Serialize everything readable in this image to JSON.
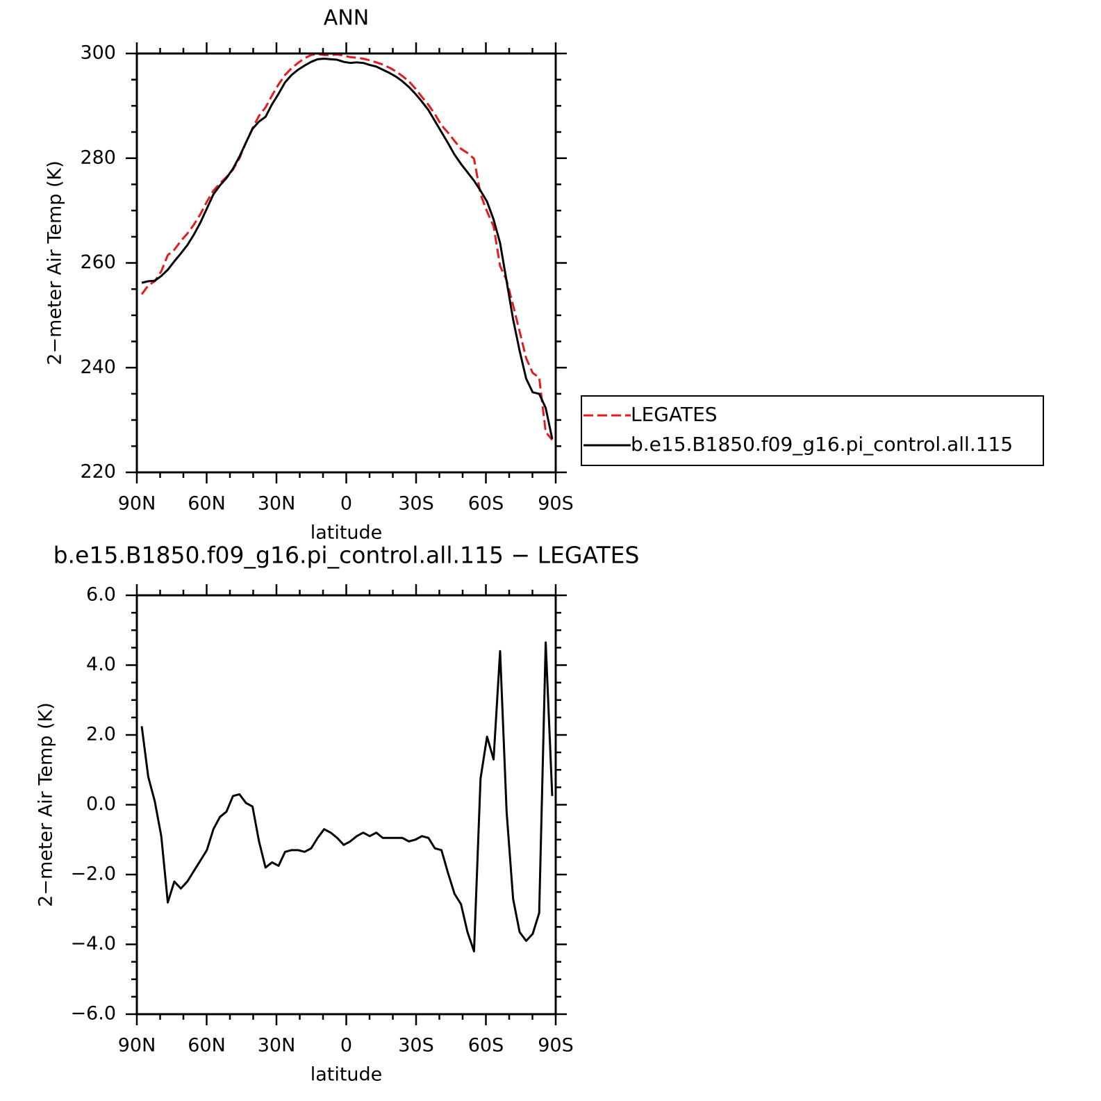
{
  "chart_data": [
    {
      "type": "line",
      "title": "ANN",
      "xlabel": "latitude",
      "ylabel": "2−meter Air Temp (K)",
      "x": [
        87.9,
        85.1,
        82.3,
        79.5,
        76.7,
        73.9,
        71.1,
        68.3,
        65.5,
        62.7,
        59.9,
        57.1,
        54.3,
        51.5,
        48.7,
        45.9,
        43.1,
        40.3,
        37.5,
        34.7,
        31.9,
        29.1,
        26.3,
        23.5,
        20.7,
        17.9,
        15.1,
        12.3,
        9.5,
        6.7,
        3.9,
        1.1,
        -1.7,
        -4.5,
        -7.3,
        -10.1,
        -12.9,
        -15.7,
        -18.5,
        -21.3,
        -24.1,
        -26.9,
        -29.7,
        -32.5,
        -35.3,
        -38.1,
        -40.9,
        -43.7,
        -46.5,
        -49.3,
        -52.1,
        -54.9,
        -57.7,
        -60.5,
        -63.3,
        -66.1,
        -68.9,
        -71.7,
        -74.5,
        -77.3,
        -80.1,
        -82.9,
        -85.7,
        -88.5
      ],
      "series": [
        {
          "name": "LEGATES",
          "color": "#e41a1c",
          "linestyle": "dashed",
          "values": [
            254.0,
            255.7,
            256.5,
            258.4,
            261.5,
            262.5,
            264.2,
            265.6,
            267.3,
            269.3,
            271.7,
            273.8,
            275.2,
            276.4,
            277.8,
            280.0,
            283.0,
            285.7,
            288.1,
            289.7,
            292.0,
            294.1,
            295.9,
            297.2,
            298.2,
            299.1,
            299.7,
            299.9,
            299.7,
            299.7,
            299.8,
            299.6,
            299.3,
            299.2,
            299.0,
            298.7,
            298.3,
            297.9,
            297.3,
            296.6,
            295.7,
            294.7,
            293.3,
            291.7,
            290.2,
            288.4,
            286.3,
            284.9,
            283.3,
            281.8,
            281.0,
            279.9,
            273.1,
            269.8,
            267.0,
            259.4,
            256.7,
            251.9,
            246.9,
            241.8,
            239.0,
            238.1,
            227.7,
            226.2
          ]
        },
        {
          "name": "b.e15.B1850.f09_g16.pi_control.all.115",
          "color": "#000000",
          "linestyle": "solid",
          "values": [
            256.2,
            256.5,
            256.6,
            257.5,
            258.7,
            260.3,
            261.8,
            263.4,
            265.4,
            267.7,
            270.4,
            273.1,
            274.8,
            276.2,
            278.0,
            280.3,
            283.0,
            285.6,
            287.0,
            287.9,
            290.3,
            292.3,
            294.5,
            295.9,
            296.9,
            297.7,
            298.4,
            298.9,
            299.0,
            298.9,
            298.8,
            298.4,
            298.2,
            298.3,
            298.2,
            297.8,
            297.5,
            296.9,
            296.3,
            295.6,
            294.7,
            293.6,
            292.3,
            290.8,
            289.2,
            287.1,
            285.0,
            282.9,
            280.7,
            278.9,
            277.3,
            275.7,
            273.8,
            271.7,
            268.3,
            263.8,
            256.5,
            249.2,
            243.2,
            237.9,
            235.3,
            235.0,
            232.3,
            226.4
          ]
        }
      ],
      "xlim": [
        90,
        -90
      ],
      "xticks": [
        {
          "value": 90,
          "label": "90N"
        },
        {
          "value": 60,
          "label": "60N"
        },
        {
          "value": 30,
          "label": "30N"
        },
        0,
        {
          "value": -30,
          "label": "30S"
        },
        {
          "value": -60,
          "label": "60S"
        },
        {
          "value": -90,
          "label": "90S"
        }
      ],
      "xminorticks": [
        80,
        70,
        50,
        40,
        20,
        10,
        -10,
        -20,
        -40,
        -50,
        -70,
        -80
      ],
      "ylim": [
        220,
        300
      ],
      "yticks": [
        220,
        240,
        260,
        280,
        300
      ],
      "yminorticks": [
        225,
        230,
        235,
        245,
        250,
        255,
        265,
        270,
        275,
        285,
        290,
        295
      ],
      "legend": "right"
    },
    {
      "type": "line",
      "title": "b.e15.B1850.f09_g16.pi_control.all.115 − LEGATES",
      "xlabel": "latitude",
      "ylabel": "2−meter Air Temp (K)",
      "x": [
        87.9,
        85.1,
        82.3,
        79.5,
        76.7,
        73.9,
        71.1,
        68.3,
        65.5,
        62.7,
        59.9,
        57.1,
        54.3,
        51.5,
        48.7,
        45.9,
        43.1,
        40.3,
        37.5,
        34.7,
        31.9,
        29.1,
        26.3,
        23.5,
        20.7,
        17.9,
        15.1,
        12.3,
        9.5,
        6.7,
        3.9,
        1.1,
        -1.7,
        -4.5,
        -7.3,
        -10.1,
        -12.9,
        -15.7,
        -18.5,
        -21.3,
        -24.1,
        -26.9,
        -29.7,
        -32.5,
        -35.3,
        -38.1,
        -40.9,
        -43.7,
        -46.5,
        -49.3,
        -52.1,
        -54.9,
        -57.7,
        -60.5,
        -63.3,
        -66.1,
        -68.9,
        -71.7,
        -74.5,
        -77.3,
        -80.1,
        -82.9,
        -85.7,
        -88.5
      ],
      "series": [
        {
          "color": "#000000",
          "linestyle": "solid",
          "values": [
            2.25,
            0.8,
            0.1,
            -0.9,
            -2.8,
            -2.2,
            -2.4,
            -2.2,
            -1.9,
            -1.6,
            -1.3,
            -0.7,
            -0.35,
            -0.2,
            0.25,
            0.3,
            0.05,
            -0.05,
            -1.05,
            -1.8,
            -1.65,
            -1.75,
            -1.35,
            -1.3,
            -1.3,
            -1.35,
            -1.25,
            -0.95,
            -0.7,
            -0.8,
            -0.95,
            -1.15,
            -1.05,
            -0.9,
            -0.8,
            -0.9,
            -0.8,
            -0.95,
            -0.95,
            -0.95,
            -0.95,
            -1.05,
            -1.0,
            -0.9,
            -0.95,
            -1.25,
            -1.3,
            -1.95,
            -2.55,
            -2.85,
            -3.65,
            -4.2,
            0.75,
            1.95,
            1.3,
            4.4,
            -0.2,
            -2.7,
            -3.65,
            -3.9,
            -3.7,
            -3.1,
            4.65,
            0.25
          ]
        }
      ],
      "xlim": [
        90,
        -90
      ],
      "xticks": [
        {
          "value": 90,
          "label": "90N"
        },
        {
          "value": 60,
          "label": "60N"
        },
        {
          "value": 30,
          "label": "30N"
        },
        0,
        {
          "value": -30,
          "label": "30S"
        },
        {
          "value": -60,
          "label": "60S"
        },
        {
          "value": -90,
          "label": "90S"
        }
      ],
      "xminorticks": [
        80,
        70,
        50,
        40,
        20,
        10,
        -10,
        -20,
        -40,
        -50,
        -70,
        -80
      ],
      "ylim": [
        -6,
        6
      ],
      "yticks": [
        {
          "value": -6,
          "label": "−6.0"
        },
        {
          "value": -4,
          "label": "−4.0"
        },
        {
          "value": -2,
          "label": "−2.0"
        },
        {
          "value": 0,
          "label": "0.0"
        },
        {
          "value": 2,
          "label": "2.0"
        },
        {
          "value": 4,
          "label": "4.0"
        },
        {
          "value": 6,
          "label": "6.0"
        }
      ],
      "yminorticks": [
        -5.5,
        -5,
        -4.5,
        -3.5,
        -3,
        -2.5,
        -1.5,
        -1,
        -0.5,
        0.5,
        1,
        1.5,
        2.5,
        3,
        3.5,
        4.5,
        5,
        5.5
      ]
    }
  ]
}
